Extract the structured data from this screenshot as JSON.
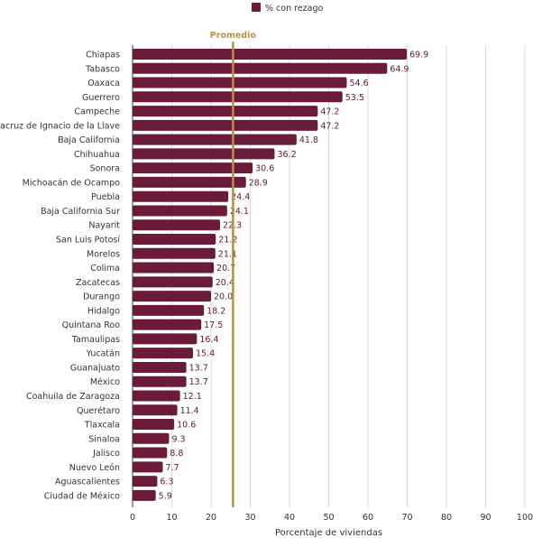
{
  "chart_data": {
    "type": "bar",
    "orientation": "horizontal",
    "categories": [
      "Chiapas",
      "Tabasco",
      "Oaxaca",
      "Guerrero",
      "Campeche",
      "Veracruz de Ignacio de la Llave",
      "Baja California",
      "Chihuahua",
      "Sonora",
      "Michoacán de Ocampo",
      "Puebla",
      "Baja California Sur",
      "Nayarit",
      "San Luis Potosí",
      "Morelos",
      "Colima",
      "Zacatecas",
      "Durango",
      "Hidalgo",
      "Quintana Roo",
      "Tamaulipas",
      "Yucatán",
      "Guanajuato",
      "México",
      "Coahuila de Zaragoza",
      "Querétaro",
      "Tlaxcala",
      "Sinaloa",
      "Jalisco",
      "Nuevo León",
      "Aguascalientes",
      "Ciudad de México"
    ],
    "series": [
      {
        "name": "% con rezago",
        "values": [
          69.9,
          64.9,
          54.6,
          53.5,
          47.2,
          47.2,
          41.8,
          36.2,
          30.6,
          28.9,
          24.4,
          24.1,
          22.3,
          21.2,
          21.1,
          20.7,
          20.4,
          20.0,
          18.2,
          17.5,
          16.4,
          15.4,
          13.7,
          13.7,
          12.1,
          11.4,
          10.6,
          9.3,
          8.8,
          7.7,
          6.3,
          5.9
        ],
        "value_labels": [
          "69.9",
          "64.9",
          "54.6",
          "53.5",
          "47.2",
          "47.2",
          "41.8",
          "36.2",
          "30.6",
          "28.9",
          "24.4",
          "24.1",
          "22.3",
          "21.2",
          "21.1",
          "20.7",
          "20.4",
          "20.0",
          "18.2",
          "17.5",
          "16.4",
          "15.4",
          "13.7",
          "13.7",
          "12.1",
          "11.4",
          "10.6",
          "9.3",
          "8.8",
          "7.7",
          "6.3",
          "5.9"
        ]
      }
    ],
    "reference_line": {
      "label": "Promedio",
      "value": 25.6
    },
    "xlabel": "Porcentaje de viviendas",
    "ylabel": "",
    "xlim": [
      0,
      100
    ],
    "x_ticks": [
      0,
      10,
      20,
      30,
      40,
      50,
      60,
      70,
      80,
      90,
      100
    ],
    "grid": "vertical",
    "legend": "top-center",
    "colors": {
      "bar": "#6a1b3a",
      "reference_line": "#b8923c",
      "grid": "#d9d9d9",
      "axis": "#333333"
    }
  }
}
